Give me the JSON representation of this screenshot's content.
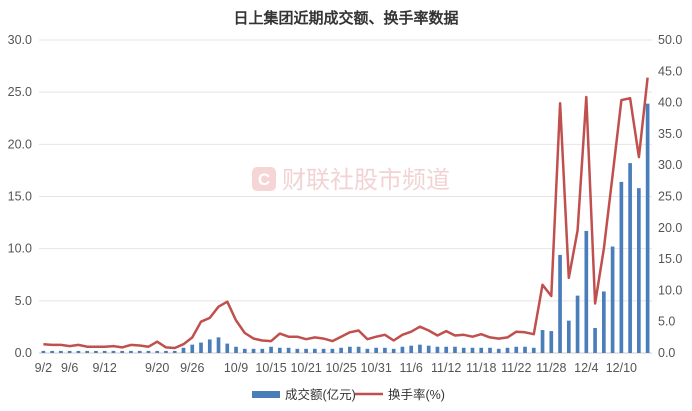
{
  "chart_data": {
    "type": "bar",
    "title": "日上集团近期成交额、换手率数据",
    "watermark": "财联社股市频道",
    "x_tick_labels": [
      "9/2",
      "9/6",
      "9/12",
      "9/20",
      "9/26",
      "10/9",
      "10/15",
      "10/21",
      "10/25",
      "10/31",
      "11/6",
      "11/12",
      "11/18",
      "11/22",
      "11/28",
      "12/4",
      "12/10"
    ],
    "y_left_ticks": [
      "0.0",
      "5.0",
      "10.0",
      "15.0",
      "20.0",
      "25.0",
      "30.0"
    ],
    "y_right_ticks": [
      "0.0",
      "5.0",
      "10.0",
      "15.0",
      "20.0",
      "25.0",
      "30.0",
      "35.0",
      "40.0",
      "45.0",
      "50.0"
    ],
    "ylim_left": [
      0,
      30
    ],
    "ylim_right": [
      0,
      50
    ],
    "grid": true,
    "legend_position": "bottom",
    "colors": {
      "bar": "#4a7ebb",
      "line": "#c0504d",
      "grid": "#e4e4e4"
    },
    "series": [
      {
        "name": "成交额(亿元)",
        "type": "bar",
        "axis": "left",
        "values": [
          0.2,
          0.2,
          0.2,
          0.2,
          0.2,
          0.2,
          0.2,
          0.2,
          0.2,
          0.2,
          0.2,
          0.2,
          0.2,
          0.2,
          0.2,
          0.2,
          0.5,
          0.8,
          1.0,
          1.3,
          1.5,
          0.9,
          0.6,
          0.4,
          0.4,
          0.4,
          0.6,
          0.5,
          0.5,
          0.4,
          0.4,
          0.4,
          0.4,
          0.4,
          0.5,
          0.6,
          0.6,
          0.4,
          0.5,
          0.5,
          0.4,
          0.6,
          0.7,
          0.8,
          0.7,
          0.6,
          0.6,
          0.6,
          0.5,
          0.5,
          0.5,
          0.5,
          0.4,
          0.5,
          0.6,
          0.6,
          0.5,
          2.2,
          2.1,
          9.4,
          3.1,
          5.5,
          11.7,
          2.4,
          5.9,
          10.2,
          16.4,
          18.2,
          15.8,
          23.9
        ]
      },
      {
        "name": "换手率(%)",
        "type": "line",
        "axis": "right",
        "values": [
          1.4,
          1.3,
          1.3,
          1.1,
          1.3,
          1.0,
          1.0,
          1.0,
          1.1,
          0.9,
          1.3,
          1.2,
          1.0,
          1.8,
          0.9,
          0.8,
          1.4,
          2.5,
          5.0,
          5.6,
          7.4,
          8.2,
          5.2,
          3.2,
          2.3,
          2.0,
          1.9,
          3.1,
          2.6,
          2.6,
          2.2,
          2.5,
          2.3,
          1.9,
          2.6,
          3.3,
          3.6,
          2.2,
          2.6,
          2.9,
          2.0,
          2.9,
          3.4,
          4.2,
          3.6,
          2.8,
          3.5,
          2.8,
          2.9,
          2.6,
          3.0,
          2.5,
          2.3,
          2.5,
          3.4,
          3.3,
          3.0,
          10.9,
          9.1,
          39.9,
          12.0,
          19.6,
          40.9,
          7.9,
          16.6,
          28.4,
          40.4,
          40.7,
          31.3,
          44.0
        ]
      }
    ]
  }
}
